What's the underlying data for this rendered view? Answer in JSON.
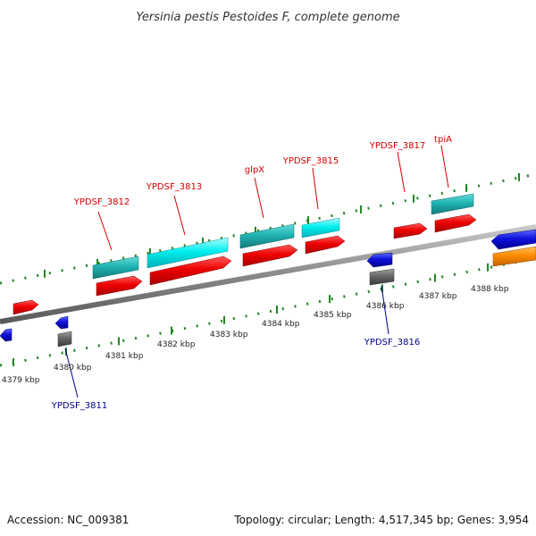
{
  "header": {
    "title": "Yersinia pestis Pestoides F, complete genome"
  },
  "footer": {
    "accession": "Accession: NC_009381",
    "summary": "Topology: circular; Length: 4,517,345 bp; Genes: 3,954"
  },
  "ruler": {
    "kbp_labels": [
      "4379 kbp",
      "4380 kbp",
      "4381 kbp",
      "4382 kbp",
      "4383 kbp",
      "4384 kbp",
      "4385 kbp",
      "4386 kbp",
      "4387 kbp",
      "4388 kbp"
    ]
  },
  "labels": {
    "forward": [
      "YPDSF_3812",
      "YPDSF_3813",
      "glpX",
      "YPDSF_3815",
      "YPDSF_3817",
      "tpiA"
    ],
    "reverse": [
      "YPDSF_3811",
      "YPDSF_3816"
    ]
  },
  "colors": {
    "forward_label": "#d40000",
    "reverse_label": "#00008b",
    "cds": "#ee0000",
    "gene_forward": "#20b2b2",
    "gene_forward_alt": "#00e5ee",
    "gene_reverse": "#1111dd",
    "gene_reverse_grey": "#666666",
    "orange": "#ff8c00",
    "ruler_tick": "#228822",
    "backbone": "#888888"
  }
}
